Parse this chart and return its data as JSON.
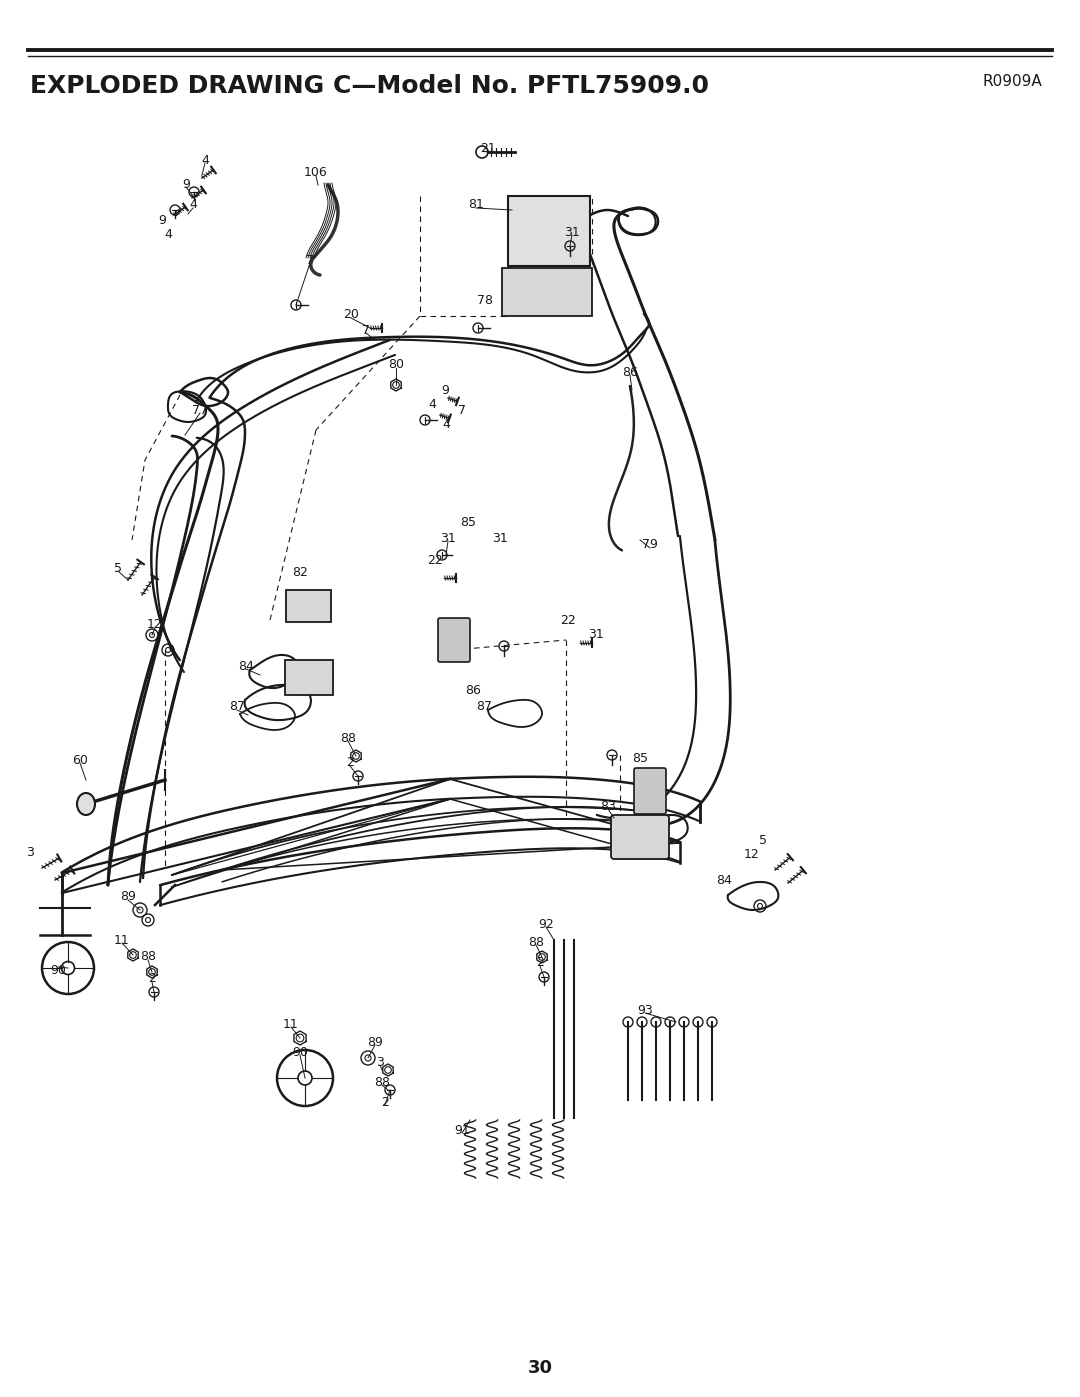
{
  "title_bold": "EXPLODED DRAWING C—Model No. PFTL75909.0",
  "title_regular": "R0909A",
  "page_number": "30",
  "background_color": "#ffffff",
  "fig_width": 10.8,
  "fig_height": 13.97,
  "dpi": 100,
  "title_fontsize": 18,
  "subtitle_fontsize": 11,
  "page_fontsize": 13,
  "line_color": "#1a1a1a",
  "text_color": "#1a1a1a"
}
